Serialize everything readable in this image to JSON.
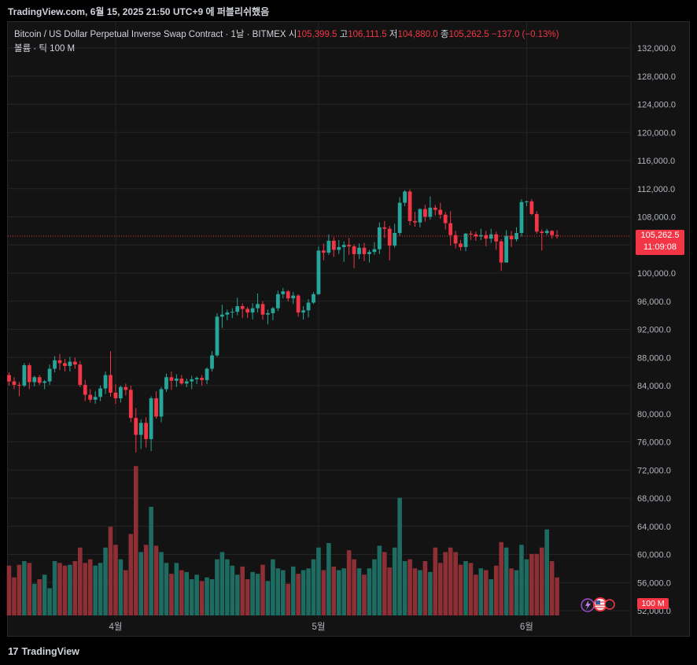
{
  "header": {
    "text": "TradingView.com, 6월 15, 2025 21:50 UTC+9 에 퍼블리쉬했음"
  },
  "legend": {
    "symbol": "Bitcoin / US Dollar Perpetual Inverse Swap Contract · 1날 · BITMEX",
    "open_label": "시",
    "open": "105,399.5",
    "high_label": "고",
    "high": "106,111.5",
    "low_label": "저",
    "low": "104,880.0",
    "close_label": "종",
    "close": "105,262.5",
    "change": "−137.0 (−0.13%)",
    "volume_label": "볼륨 · 틱",
    "volume_value": "100 M"
  },
  "price_tag": {
    "price": "105,262.5",
    "countdown": "11:09:08"
  },
  "volume_tag": "100 M",
  "footer": {
    "brand": "TradingView"
  },
  "colors": {
    "up": "#26a69a",
    "down": "#f23645",
    "vol_up": "#1e6b62",
    "vol_down": "#8e2f35"
  },
  "chart_data": {
    "type": "candlestick",
    "y_ticks": [
      "132,000.0",
      "128,000.0",
      "124,000.0",
      "120,000.0",
      "116,000.0",
      "112,000.0",
      "108,000.0",
      "104,000.0",
      "100,000.0",
      "96,000.0",
      "92,000.0",
      "88,000.0",
      "84,000.0",
      "80,000.0",
      "76,000.0",
      "72,000.0",
      "68,000.0",
      "64,000.0",
      "60,000.0",
      "56,000.0",
      "52,000.0"
    ],
    "x_labels": [
      {
        "label": "4월",
        "index": 21
      },
      {
        "label": "5월",
        "index": 61
      },
      {
        "label": "6월",
        "index": 102
      }
    ],
    "ohlcv": [
      [
        85500,
        85900,
        84000,
        84600,
        55
      ],
      [
        84600,
        85200,
        83500,
        84100,
        42
      ],
      [
        84100,
        84500,
        82500,
        84000,
        56
      ],
      [
        84000,
        87200,
        83800,
        86900,
        60
      ],
      [
        86900,
        87200,
        83500,
        84500,
        58
      ],
      [
        84500,
        85400,
        83900,
        85200,
        35
      ],
      [
        85200,
        85500,
        84100,
        84400,
        40
      ],
      [
        84400,
        84800,
        83500,
        84600,
        45
      ],
      [
        84600,
        87000,
        84100,
        86400,
        30
      ],
      [
        86400,
        88200,
        85900,
        87600,
        60
      ],
      [
        87600,
        88500,
        86200,
        87200,
        58
      ],
      [
        87200,
        87800,
        86000,
        86800,
        55
      ],
      [
        86800,
        88100,
        86000,
        87400,
        56
      ],
      [
        87400,
        88000,
        86400,
        87000,
        60
      ],
      [
        87000,
        87500,
        83800,
        84100,
        75
      ],
      [
        84100,
        84800,
        81800,
        82700,
        58
      ],
      [
        82700,
        83500,
        81600,
        82000,
        62
      ],
      [
        82000,
        83200,
        81400,
        82400,
        55
      ],
      [
        82400,
        84000,
        81800,
        83600,
        58
      ],
      [
        83600,
        86000,
        82800,
        85500,
        75
      ],
      [
        85500,
        88900,
        82400,
        83000,
        98
      ],
      [
        83000,
        84200,
        81400,
        82200,
        78
      ],
      [
        82200,
        84000,
        81600,
        83800,
        62
      ],
      [
        83800,
        84300,
        82600,
        83400,
        50
      ],
      [
        83400,
        84000,
        78800,
        79400,
        90
      ],
      [
        79400,
        80800,
        74500,
        77000,
        165
      ],
      [
        77000,
        79200,
        75000,
        78700,
        70
      ],
      [
        78700,
        79500,
        75200,
        76400,
        78
      ],
      [
        76400,
        82500,
        74700,
        82200,
        120
      ],
      [
        82200,
        83200,
        79300,
        79600,
        77
      ],
      [
        79600,
        83800,
        78800,
        83500,
        70
      ],
      [
        83500,
        85700,
        83100,
        85200,
        58
      ],
      [
        85200,
        86000,
        83400,
        84700,
        46
      ],
      [
        84700,
        85600,
        83800,
        85000,
        58
      ],
      [
        85000,
        85500,
        84100,
        84300,
        50
      ],
      [
        84300,
        85000,
        83800,
        84600,
        48
      ],
      [
        84600,
        85400,
        83500,
        84900,
        40
      ],
      [
        84900,
        85300,
        84200,
        85100,
        45
      ],
      [
        85100,
        85500,
        84000,
        84800,
        38
      ],
      [
        84800,
        86600,
        84200,
        86400,
        42
      ],
      [
        86400,
        88900,
        86000,
        88300,
        40
      ],
      [
        88300,
        94300,
        88100,
        93800,
        62
      ],
      [
        93800,
        95500,
        92200,
        94100,
        70
      ],
      [
        94100,
        94800,
        93300,
        94400,
        62
      ],
      [
        94400,
        95000,
        93600,
        94500,
        55
      ],
      [
        94500,
        96500,
        94000,
        95300,
        45
      ],
      [
        95300,
        95700,
        93600,
        94900,
        54
      ],
      [
        94900,
        95200,
        93600,
        94400,
        40
      ],
      [
        94400,
        95700,
        93400,
        95000,
        48
      ],
      [
        95000,
        97100,
        94400,
        95600,
        46
      ],
      [
        95600,
        96000,
        93400,
        94100,
        56
      ],
      [
        94100,
        94800,
        92700,
        94300,
        38
      ],
      [
        94300,
        95200,
        93300,
        95000,
        62
      ],
      [
        95000,
        97500,
        94600,
        97000,
        52
      ],
      [
        97000,
        97900,
        96400,
        97400,
        50
      ],
      [
        97400,
        97600,
        96000,
        96400,
        35
      ],
      [
        96400,
        97300,
        95600,
        96800,
        54
      ],
      [
        96800,
        97000,
        93800,
        94400,
        46
      ],
      [
        94400,
        95300,
        93400,
        94700,
        50
      ],
      [
        94700,
        96300,
        93700,
        95800,
        52
      ],
      [
        95800,
        97300,
        95600,
        97000,
        62
      ],
      [
        97000,
        103800,
        96900,
        103200,
        75
      ],
      [
        103200,
        104200,
        101800,
        102900,
        50
      ],
      [
        102900,
        105500,
        102600,
        104600,
        80
      ],
      [
        104600,
        105100,
        102300,
        103300,
        54
      ],
      [
        103300,
        104700,
        102700,
        103700,
        50
      ],
      [
        103700,
        104500,
        101600,
        104000,
        52
      ],
      [
        104000,
        105000,
        102600,
        103800,
        72
      ],
      [
        103800,
        104100,
        100700,
        102700,
        62
      ],
      [
        102700,
        104200,
        102000,
        103600,
        52
      ],
      [
        103600,
        104300,
        101700,
        102700,
        45
      ],
      [
        102700,
        103300,
        101500,
        103000,
        52
      ],
      [
        103000,
        104400,
        102600,
        103400,
        62
      ],
      [
        103400,
        107200,
        102700,
        106500,
        77
      ],
      [
        106500,
        107400,
        105000,
        106300,
        70
      ],
      [
        106300,
        106700,
        101800,
        103900,
        53
      ],
      [
        103900,
        107000,
        103600,
        105700,
        75
      ],
      [
        105700,
        110800,
        105300,
        110000,
        130
      ],
      [
        110000,
        111800,
        109500,
        111600,
        60
      ],
      [
        111600,
        111900,
        106800,
        107400,
        62
      ],
      [
        107400,
        108700,
        106600,
        107200,
        52
      ],
      [
        107200,
        109200,
        106500,
        109100,
        50
      ],
      [
        109100,
        109700,
        107300,
        108000,
        60
      ],
      [
        108000,
        110900,
        107600,
        109300,
        48
      ],
      [
        109300,
        109700,
        108200,
        109000,
        75
      ],
      [
        109000,
        110000,
        107700,
        108300,
        58
      ],
      [
        108300,
        108700,
        106200,
        107100,
        70
      ],
      [
        107100,
        108800,
        103900,
        105400,
        75
      ],
      [
        105400,
        106000,
        103500,
        104200,
        70
      ],
      [
        104200,
        104700,
        103200,
        103700,
        56
      ],
      [
        103700,
        105700,
        103100,
        105600,
        60
      ],
      [
        105600,
        106000,
        104700,
        105500,
        58
      ],
      [
        105500,
        105900,
        104600,
        105200,
        45
      ],
      [
        105200,
        106300,
        104700,
        105400,
        52
      ],
      [
        105400,
        106000,
        103800,
        104900,
        50
      ],
      [
        104900,
        106300,
        104300,
        105500,
        40
      ],
      [
        105500,
        105900,
        103300,
        104500,
        55
      ],
      [
        104500,
        104800,
        100300,
        101500,
        81
      ],
      [
        101500,
        106100,
        101500,
        105300,
        75
      ],
      [
        105300,
        106000,
        103700,
        104800,
        52
      ],
      [
        104800,
        106500,
        104500,
        105700,
        50
      ],
      [
        105700,
        110500,
        105200,
        110100,
        78
      ],
      [
        110100,
        110300,
        109500,
        110200,
        62
      ],
      [
        110200,
        110500,
        108200,
        108400,
        68
      ],
      [
        108400,
        108800,
        105600,
        105900,
        68
      ],
      [
        105900,
        106200,
        103200,
        105700,
        75
      ],
      [
        105700,
        106300,
        105400,
        106000,
        95
      ],
      [
        106000,
        106100,
        104900,
        105400,
        60
      ],
      [
        105400,
        106100,
        104900,
        105300,
        42
      ]
    ]
  }
}
